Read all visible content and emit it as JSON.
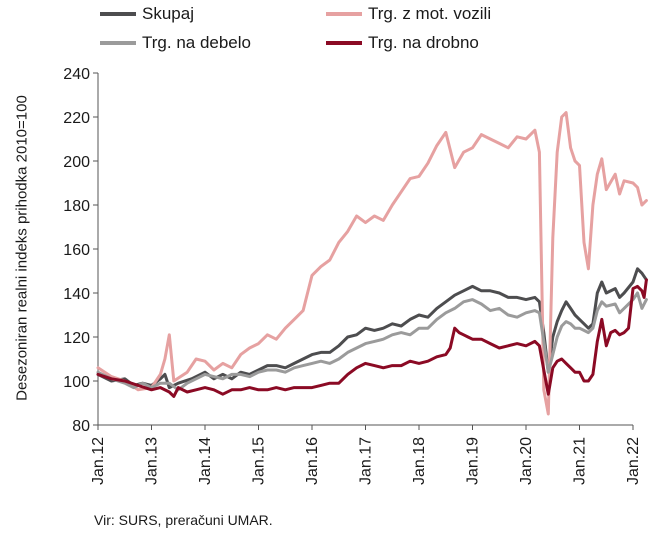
{
  "chart_data": {
    "type": "line",
    "ylabel": "Desezoniran realni indeks prihodka 2010=100",
    "ylim": [
      80,
      240
    ],
    "yticks": [
      80,
      100,
      120,
      140,
      160,
      180,
      200,
      220,
      240
    ],
    "xticks": [
      "Jan.12",
      "Jan.13",
      "Jan.14",
      "Jan.15",
      "Jan.16",
      "Jan.17",
      "Jan.18",
      "Jan.19",
      "Jan.20",
      "Jan.21",
      "Jan.22"
    ],
    "x_start": "2012-01",
    "x_end": "2022-01",
    "legend": "top",
    "grid": false,
    "series": [
      {
        "name": "Skupaj",
        "color": "#4d4d4f",
        "points": [
          [
            0,
            103
          ],
          [
            3,
            100
          ],
          [
            6,
            101
          ],
          [
            8,
            98
          ],
          [
            10,
            99
          ],
          [
            12,
            98
          ],
          [
            14,
            101
          ],
          [
            15,
            103
          ],
          [
            16,
            97
          ],
          [
            18,
            99
          ],
          [
            21,
            101
          ],
          [
            24,
            104
          ],
          [
            26,
            101
          ],
          [
            28,
            103
          ],
          [
            30,
            101
          ],
          [
            32,
            104
          ],
          [
            34,
            103
          ],
          [
            36,
            105
          ],
          [
            38,
            107
          ],
          [
            40,
            107
          ],
          [
            42,
            106
          ],
          [
            44,
            108
          ],
          [
            46,
            110
          ],
          [
            48,
            112
          ],
          [
            50,
            113
          ],
          [
            52,
            113
          ],
          [
            54,
            116
          ],
          [
            56,
            120
          ],
          [
            58,
            121
          ],
          [
            60,
            124
          ],
          [
            62,
            123
          ],
          [
            64,
            124
          ],
          [
            66,
            126
          ],
          [
            68,
            125
          ],
          [
            70,
            128
          ],
          [
            72,
            130
          ],
          [
            74,
            129
          ],
          [
            76,
            133
          ],
          [
            78,
            136
          ],
          [
            80,
            139
          ],
          [
            82,
            141
          ],
          [
            84,
            143
          ],
          [
            86,
            141
          ],
          [
            88,
            141
          ],
          [
            90,
            140
          ],
          [
            92,
            138
          ],
          [
            94,
            138
          ],
          [
            96,
            137
          ],
          [
            98,
            138
          ],
          [
            99,
            136
          ],
          [
            100,
            122
          ],
          [
            101,
            104
          ],
          [
            102,
            120
          ],
          [
            103,
            127
          ],
          [
            104,
            132
          ],
          [
            105,
            136
          ],
          [
            106,
            133
          ],
          [
            107,
            130
          ],
          [
            108,
            128
          ],
          [
            109,
            126
          ],
          [
            110,
            124
          ],
          [
            111,
            126
          ],
          [
            112,
            140
          ],
          [
            113,
            145
          ],
          [
            114,
            140
          ],
          [
            116,
            142
          ],
          [
            117,
            138
          ],
          [
            118,
            140
          ],
          [
            120,
            145
          ],
          [
            121,
            151
          ],
          [
            122,
            149
          ],
          [
            123,
            146
          ]
        ]
      },
      {
        "name": "Trg. z mot. vozili",
        "color": "#e6a1a1",
        "points": [
          [
            0,
            106
          ],
          [
            3,
            102
          ],
          [
            6,
            100
          ],
          [
            9,
            96
          ],
          [
            12,
            97
          ],
          [
            14,
            103
          ],
          [
            15,
            110
          ],
          [
            16,
            121
          ],
          [
            17,
            100
          ],
          [
            20,
            104
          ],
          [
            22,
            110
          ],
          [
            24,
            109
          ],
          [
            26,
            105
          ],
          [
            28,
            108
          ],
          [
            30,
            106
          ],
          [
            32,
            112
          ],
          [
            34,
            115
          ],
          [
            36,
            117
          ],
          [
            38,
            121
          ],
          [
            40,
            119
          ],
          [
            42,
            124
          ],
          [
            44,
            128
          ],
          [
            46,
            132
          ],
          [
            48,
            148
          ],
          [
            50,
            152
          ],
          [
            52,
            155
          ],
          [
            54,
            163
          ],
          [
            56,
            168
          ],
          [
            58,
            175
          ],
          [
            60,
            172
          ],
          [
            62,
            175
          ],
          [
            64,
            173
          ],
          [
            66,
            180
          ],
          [
            68,
            186
          ],
          [
            70,
            192
          ],
          [
            72,
            193
          ],
          [
            74,
            199
          ],
          [
            76,
            207
          ],
          [
            78,
            213
          ],
          [
            80,
            197
          ],
          [
            82,
            204
          ],
          [
            84,
            206
          ],
          [
            86,
            212
          ],
          [
            88,
            210
          ],
          [
            90,
            208
          ],
          [
            92,
            206
          ],
          [
            94,
            211
          ],
          [
            96,
            210
          ],
          [
            98,
            214
          ],
          [
            99,
            204
          ],
          [
            100,
            96
          ],
          [
            101,
            85
          ],
          [
            102,
            165
          ],
          [
            103,
            204
          ],
          [
            104,
            220
          ],
          [
            105,
            222
          ],
          [
            106,
            206
          ],
          [
            107,
            200
          ],
          [
            108,
            198
          ],
          [
            109,
            163
          ],
          [
            110,
            151
          ],
          [
            111,
            180
          ],
          [
            112,
            194
          ],
          [
            113,
            201
          ],
          [
            114,
            187
          ],
          [
            116,
            194
          ],
          [
            117,
            185
          ],
          [
            118,
            191
          ],
          [
            120,
            190
          ],
          [
            121,
            188
          ],
          [
            122,
            180
          ],
          [
            123,
            182
          ]
        ]
      },
      {
        "name": "Trg. na debelo",
        "color": "#9b9b9b",
        "points": [
          [
            0,
            104
          ],
          [
            3,
            101
          ],
          [
            6,
            99
          ],
          [
            8,
            97
          ],
          [
            10,
            99
          ],
          [
            12,
            97
          ],
          [
            14,
            99
          ],
          [
            16,
            99
          ],
          [
            18,
            96
          ],
          [
            20,
            99
          ],
          [
            22,
            101
          ],
          [
            24,
            103
          ],
          [
            26,
            102
          ],
          [
            28,
            101
          ],
          [
            30,
            103
          ],
          [
            32,
            103
          ],
          [
            34,
            102
          ],
          [
            36,
            104
          ],
          [
            38,
            105
          ],
          [
            40,
            105
          ],
          [
            42,
            104
          ],
          [
            44,
            106
          ],
          [
            46,
            107
          ],
          [
            48,
            108
          ],
          [
            50,
            109
          ],
          [
            52,
            108
          ],
          [
            54,
            110
          ],
          [
            56,
            113
          ],
          [
            58,
            115
          ],
          [
            60,
            117
          ],
          [
            62,
            118
          ],
          [
            64,
            119
          ],
          [
            66,
            121
          ],
          [
            68,
            122
          ],
          [
            70,
            121
          ],
          [
            72,
            124
          ],
          [
            74,
            124
          ],
          [
            76,
            128
          ],
          [
            78,
            131
          ],
          [
            80,
            133
          ],
          [
            82,
            136
          ],
          [
            84,
            137
          ],
          [
            86,
            135
          ],
          [
            88,
            132
          ],
          [
            90,
            133
          ],
          [
            92,
            130
          ],
          [
            94,
            129
          ],
          [
            96,
            131
          ],
          [
            98,
            132
          ],
          [
            99,
            131
          ],
          [
            100,
            118
          ],
          [
            101,
            104
          ],
          [
            102,
            112
          ],
          [
            103,
            120
          ],
          [
            104,
            125
          ],
          [
            105,
            127
          ],
          [
            106,
            126
          ],
          [
            107,
            124
          ],
          [
            108,
            124
          ],
          [
            109,
            123
          ],
          [
            110,
            122
          ],
          [
            111,
            124
          ],
          [
            112,
            132
          ],
          [
            113,
            136
          ],
          [
            114,
            134
          ],
          [
            116,
            135
          ],
          [
            117,
            131
          ],
          [
            118,
            133
          ],
          [
            120,
            137
          ],
          [
            121,
            140
          ],
          [
            122,
            133
          ],
          [
            123,
            137
          ]
        ]
      },
      {
        "name": "Trg. na drobno",
        "color": "#8b0a24",
        "points": [
          [
            0,
            103
          ],
          [
            3,
            101
          ],
          [
            6,
            100
          ],
          [
            9,
            98
          ],
          [
            12,
            96
          ],
          [
            14,
            97
          ],
          [
            16,
            95
          ],
          [
            17,
            93
          ],
          [
            18,
            97
          ],
          [
            20,
            95
          ],
          [
            22,
            96
          ],
          [
            24,
            97
          ],
          [
            26,
            96
          ],
          [
            28,
            94
          ],
          [
            30,
            96
          ],
          [
            32,
            96
          ],
          [
            34,
            97
          ],
          [
            36,
            96
          ],
          [
            38,
            96
          ],
          [
            40,
            97
          ],
          [
            42,
            96
          ],
          [
            44,
            97
          ],
          [
            46,
            97
          ],
          [
            48,
            97
          ],
          [
            50,
            98
          ],
          [
            52,
            99
          ],
          [
            54,
            99
          ],
          [
            56,
            103
          ],
          [
            58,
            106
          ],
          [
            60,
            108
          ],
          [
            62,
            107
          ],
          [
            64,
            106
          ],
          [
            66,
            107
          ],
          [
            68,
            107
          ],
          [
            70,
            109
          ],
          [
            72,
            108
          ],
          [
            74,
            109
          ],
          [
            76,
            111
          ],
          [
            78,
            112
          ],
          [
            79,
            115
          ],
          [
            80,
            124
          ],
          [
            81,
            122
          ],
          [
            82,
            121
          ],
          [
            83,
            120
          ],
          [
            84,
            119
          ],
          [
            86,
            119
          ],
          [
            88,
            117
          ],
          [
            90,
            115
          ],
          [
            92,
            116
          ],
          [
            94,
            117
          ],
          [
            96,
            116
          ],
          [
            98,
            118
          ],
          [
            99,
            116
          ],
          [
            100,
            105
          ],
          [
            101,
            94
          ],
          [
            102,
            106
          ],
          [
            103,
            109
          ],
          [
            104,
            110
          ],
          [
            105,
            108
          ],
          [
            106,
            106
          ],
          [
            107,
            104
          ],
          [
            108,
            104
          ],
          [
            109,
            100
          ],
          [
            110,
            100
          ],
          [
            111,
            103
          ],
          [
            112,
            118
          ],
          [
            113,
            128
          ],
          [
            114,
            116
          ],
          [
            115,
            122
          ],
          [
            116,
            123
          ],
          [
            117,
            121
          ],
          [
            118,
            122
          ],
          [
            119,
            124
          ],
          [
            120,
            142
          ],
          [
            121,
            143
          ],
          [
            122,
            141
          ],
          [
            122.5,
            138
          ],
          [
            123,
            146
          ]
        ]
      }
    ]
  },
  "source_note": "Vir: SURS, preračuni UMAR."
}
